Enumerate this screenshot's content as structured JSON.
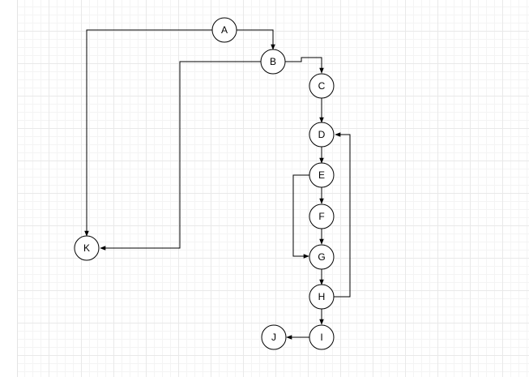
{
  "diagram": {
    "type": "flow-graph",
    "nodes": [
      {
        "id": "A",
        "label": "A"
      },
      {
        "id": "B",
        "label": "B"
      },
      {
        "id": "C",
        "label": "C"
      },
      {
        "id": "D",
        "label": "D"
      },
      {
        "id": "E",
        "label": "E"
      },
      {
        "id": "F",
        "label": "F"
      },
      {
        "id": "G",
        "label": "G"
      },
      {
        "id": "H",
        "label": "H"
      },
      {
        "id": "I",
        "label": "I"
      },
      {
        "id": "J",
        "label": "J"
      },
      {
        "id": "K",
        "label": "K"
      }
    ],
    "edges": [
      {
        "from": "A",
        "to": "B"
      },
      {
        "from": "A",
        "to": "K"
      },
      {
        "from": "B",
        "to": "C"
      },
      {
        "from": "B",
        "to": "K"
      },
      {
        "from": "C",
        "to": "D"
      },
      {
        "from": "D",
        "to": "E"
      },
      {
        "from": "E",
        "to": "F"
      },
      {
        "from": "E",
        "to": "G"
      },
      {
        "from": "F",
        "to": "G"
      },
      {
        "from": "G",
        "to": "H"
      },
      {
        "from": "H",
        "to": "D"
      },
      {
        "from": "H",
        "to": "I"
      },
      {
        "from": "I",
        "to": "J"
      }
    ]
  },
  "colors": {
    "stroke": "#000000",
    "node_fill": "#ffffff",
    "grid_line": "#e9e9e9",
    "background": "#ffffff"
  }
}
